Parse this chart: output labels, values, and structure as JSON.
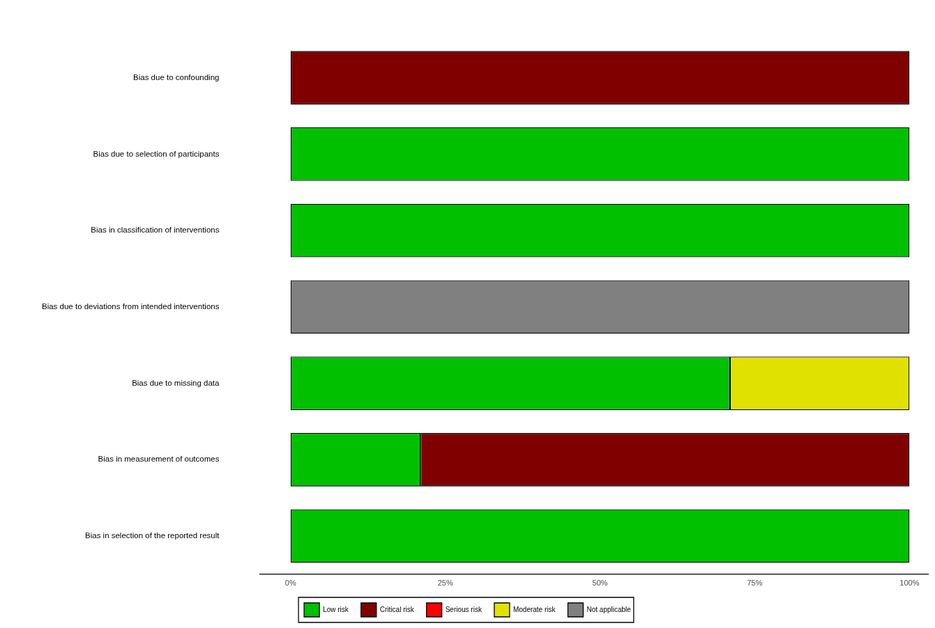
{
  "chart_data": {
    "type": "bar",
    "orientation": "horizontal",
    "stacked": true,
    "categories": [
      "Bias due to confounding",
      "Bias due to selection of participants",
      "Bias in classification of interventions",
      "Bias due to deviations from intended interventions",
      "Bias due to missing data",
      "Bias in measurement of outcomes",
      "Bias in selection of the reported result"
    ],
    "series": [
      {
        "name": "Low risk",
        "color": "#00c000",
        "values": [
          0,
          100,
          100,
          0,
          71,
          21,
          100
        ]
      },
      {
        "name": "Critical risk",
        "color": "#800000",
        "values": [
          100,
          0,
          0,
          0,
          0,
          79,
          0
        ]
      },
      {
        "name": "Serious risk",
        "color": "#ff0000",
        "values": [
          0,
          0,
          0,
          0,
          0,
          0,
          0
        ]
      },
      {
        "name": "Moderate risk",
        "color": "#e1e100",
        "values": [
          0,
          0,
          0,
          0,
          29,
          0,
          0
        ]
      },
      {
        "name": "Not applicable",
        "color": "#808080",
        "values": [
          0,
          0,
          0,
          100,
          0,
          0,
          0
        ]
      }
    ],
    "xlim": [
      -5,
      103
    ],
    "xticks": [
      {
        "value": 0,
        "label": "0%"
      },
      {
        "value": 25,
        "label": "25%"
      },
      {
        "value": 50,
        "label": "50%"
      },
      {
        "value": 75,
        "label": "75%"
      },
      {
        "value": 100,
        "label": "100%"
      }
    ],
    "grid": false,
    "legend": "bottom"
  }
}
